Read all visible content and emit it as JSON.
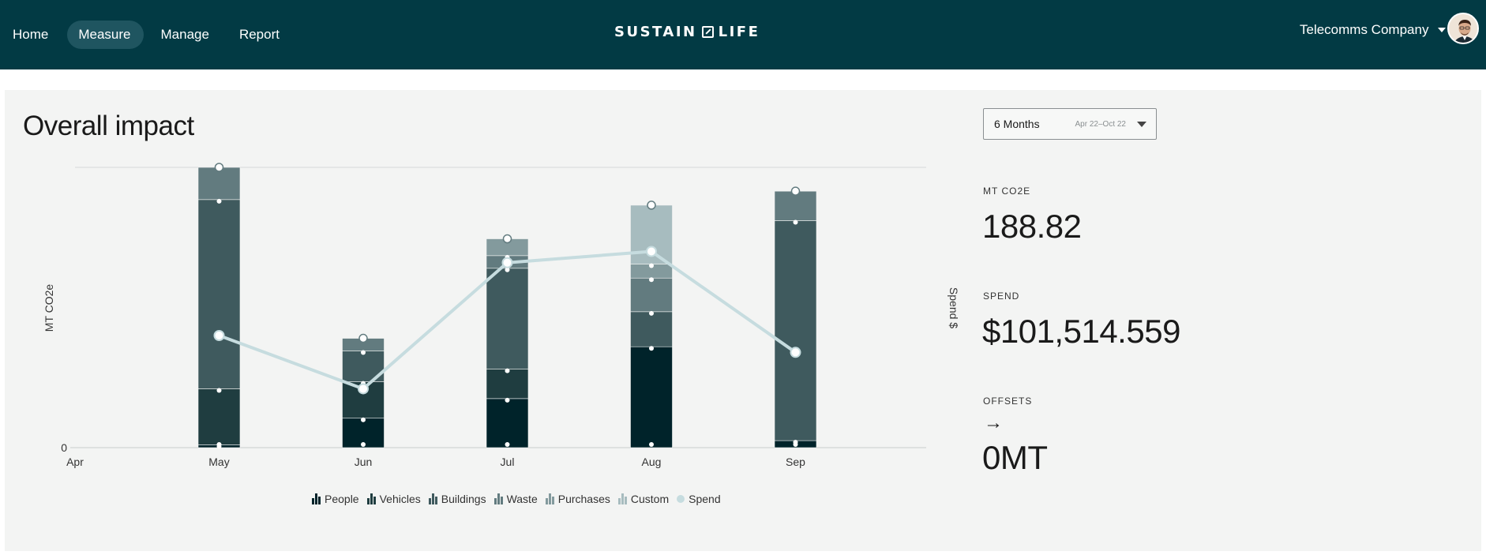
{
  "nav": {
    "items": [
      {
        "label": "Home",
        "active": false
      },
      {
        "label": "Measure",
        "active": true
      },
      {
        "label": "Manage",
        "active": false
      },
      {
        "label": "Report",
        "active": false
      }
    ]
  },
  "logo": {
    "left": "SUSTAIN",
    "right": "LIFE"
  },
  "account": {
    "company": "Telecomms Company"
  },
  "page": {
    "title": "Overall impact"
  },
  "range": {
    "label": "6 Months",
    "dates": "Apr 22–Oct 22"
  },
  "stats": {
    "co2_label": "MT CO2E",
    "co2_value": "188.82",
    "spend_label": "SPEND",
    "spend_value": "$101,514.559",
    "offsets_label": "OFFSETS",
    "offsets_icon": "arrow-right-icon",
    "offsets_value": "0MT"
  },
  "colors": {
    "People": "#00232a",
    "Vehicles": "#1f3d40",
    "Buildings": "#3f5a5e",
    "Waste": "#627b7f",
    "Purchases": "#839a9d",
    "Custom": "#a7bcbf",
    "Spend": "#c6dcdf"
  },
  "chart_data": {
    "type": "bar",
    "stacked": true,
    "categories": [
      "Apr",
      "May",
      "Jun",
      "Jul",
      "Aug",
      "Sep"
    ],
    "ylabel": "MT CO2e",
    "y2label": "Spend $",
    "ytick": "0",
    "ylim": [
      0,
      100
    ],
    "grid": "top line only",
    "legend_position": "bottom",
    "series": [
      {
        "name": "People",
        "values": [
          0,
          1,
          10.5,
          17.5,
          36,
          2.5
        ]
      },
      {
        "name": "Vehicles",
        "values": [
          0,
          20,
          13,
          10.5,
          0,
          0
        ]
      },
      {
        "name": "Buildings",
        "values": [
          0,
          67.5,
          11,
          36,
          12.5,
          78.5
        ]
      },
      {
        "name": "Waste",
        "values": [
          0,
          11.5,
          4.5,
          4.5,
          12,
          10.5
        ]
      },
      {
        "name": "Purchases",
        "values": [
          0,
          0,
          0,
          6,
          5,
          0
        ]
      },
      {
        "name": "Custom",
        "values": [
          0,
          0,
          0,
          0,
          21,
          0
        ]
      }
    ],
    "line_series": {
      "name": "Spend",
      "values": [
        null,
        40,
        21,
        66,
        70,
        34
      ],
      "ylim": [
        0,
        100
      ]
    }
  }
}
